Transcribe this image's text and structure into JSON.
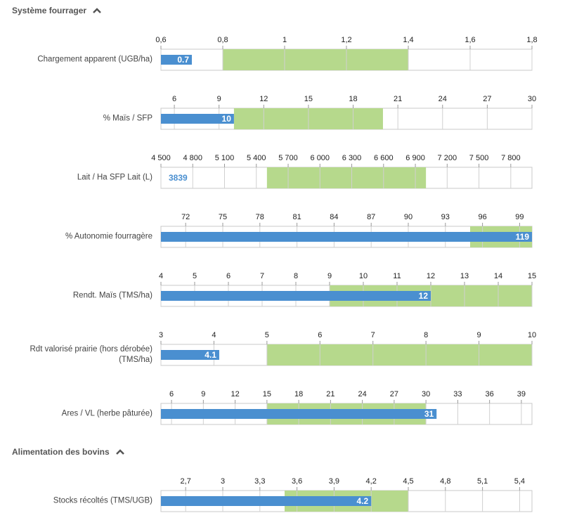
{
  "sections": [
    {
      "title": "Système fourrager"
    },
    {
      "title": "Alimentation des bovins"
    }
  ],
  "chart_data": [
    {
      "type": "bullet",
      "title": "Chargement apparent (UGB/ha)",
      "xlim": [
        0.6,
        1.8
      ],
      "xticks": [
        {
          "value": 0.6,
          "label": "0,6"
        },
        {
          "value": 0.8,
          "label": "0,8"
        },
        1,
        {
          "value": 1.2,
          "label": "1,2"
        },
        {
          "value": 1.4,
          "label": "1,4"
        },
        {
          "value": 1.6,
          "label": "1,6"
        },
        {
          "value": 1.8,
          "label": "1,8"
        }
      ],
      "target": [
        0.8,
        1.4
      ],
      "value": 0.7,
      "color": "#4a8fd0",
      "target_color": "#b6d98c"
    },
    {
      "type": "bullet",
      "title": "% Maïs / SFP",
      "xlim": [
        5.1,
        30
      ],
      "xticks": [
        6,
        9,
        12,
        15,
        18,
        21,
        24,
        27,
        30
      ],
      "target": [
        10,
        20
      ],
      "value": 10,
      "color": "#4a8fd0",
      "target_color": "#b6d98c"
    },
    {
      "type": "bullet",
      "title": "Lait / Ha SFP Lait (L)",
      "xlim": [
        4500,
        8000
      ],
      "xticks": [
        {
          "value": 4500,
          "label": "4 500"
        },
        {
          "value": 4800,
          "label": "4 800"
        },
        {
          "value": 5100,
          "label": "5 100"
        },
        {
          "value": 5400,
          "label": "5 400"
        },
        {
          "value": 5700,
          "label": "5 700"
        },
        {
          "value": 6000,
          "label": "6 000"
        },
        {
          "value": 6300,
          "label": "6 300"
        },
        {
          "value": 6600,
          "label": "6 600"
        },
        {
          "value": 6900,
          "label": "6 900"
        },
        {
          "value": 7200,
          "label": "7 200"
        },
        {
          "value": 7500,
          "label": "7 500"
        },
        {
          "value": 7800,
          "label": "7 800"
        }
      ],
      "target": [
        5500,
        7000
      ],
      "value": 3839,
      "color": "#4a8fd0",
      "target_color": "#b6d98c"
    },
    {
      "type": "bullet",
      "title": "% Autonomie fourragère",
      "xlim": [
        70,
        100
      ],
      "xticks": [
        72,
        75,
        78,
        81,
        84,
        87,
        90,
        93,
        96,
        99
      ],
      "target": [
        95,
        100
      ],
      "value": 119,
      "color": "#4a8fd0",
      "target_color": "#b6d98c"
    },
    {
      "type": "bullet",
      "title": "Rendt. Maïs (TMS/ha)",
      "xlim": [
        4,
        15
      ],
      "xticks": [
        4,
        5,
        6,
        7,
        8,
        9,
        10,
        11,
        12,
        13,
        14,
        15
      ],
      "target": [
        9,
        15
      ],
      "value": 12,
      "color": "#4a8fd0",
      "target_color": "#b6d98c"
    },
    {
      "type": "bullet",
      "title": "Rdt valorisé prairie (hors dérobée) (TMS/ha)",
      "xlim": [
        3,
        10
      ],
      "xticks": [
        3,
        4,
        5,
        6,
        7,
        8,
        9,
        10
      ],
      "target": [
        5,
        10
      ],
      "value": 4.1,
      "color": "#4a8fd0",
      "target_color": "#b6d98c"
    },
    {
      "type": "bullet",
      "title": "Ares / VL (herbe pâturée)",
      "xlim": [
        5,
        40
      ],
      "xticks": [
        6,
        9,
        12,
        15,
        18,
        21,
        24,
        27,
        30,
        33,
        36,
        39
      ],
      "target": [
        15,
        30
      ],
      "value": 31,
      "color": "#4a8fd0",
      "target_color": "#b6d98c"
    },
    {
      "type": "bullet",
      "title": "Stocks récoltés (TMS/UGB)",
      "xlim": [
        2.5,
        5.5
      ],
      "xticks": [
        {
          "value": 2.7,
          "label": "2,7"
        },
        3,
        {
          "value": 3.3,
          "label": "3,3"
        },
        {
          "value": 3.6,
          "label": "3,6"
        },
        {
          "value": 3.9,
          "label": "3,9"
        },
        {
          "value": 4.2,
          "label": "4,2"
        },
        {
          "value": 4.5,
          "label": "4,5"
        },
        {
          "value": 4.8,
          "label": "4,8"
        },
        {
          "value": 5.1,
          "label": "5,1"
        },
        {
          "value": 5.4,
          "label": "5,4"
        }
      ],
      "target": [
        3.5,
        4.5
      ],
      "value": 4.2,
      "color": "#4a8fd0",
      "target_color": "#b6d98c"
    }
  ]
}
